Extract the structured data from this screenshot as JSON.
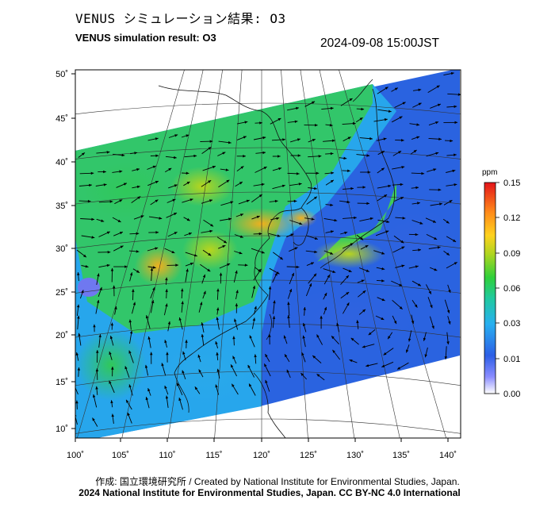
{
  "header": {
    "title_jp": "VENUS シミュレーション結果: O3",
    "title_en": "VENUS simulation result: O3",
    "timestamp": "2024-09-08 15:00JST"
  },
  "map": {
    "lon_labels": [
      "100˚",
      "105˚",
      "110˚",
      "115˚",
      "120˚",
      "125˚",
      "130˚",
      "135˚",
      "140˚"
    ],
    "lat_labels": [
      "50˚",
      "45˚",
      "40˚",
      "35˚",
      "30˚",
      "25˚",
      "20˚",
      "15˚",
      "10˚"
    ],
    "field": "O3 concentration with wind vectors"
  },
  "colorbar": {
    "unit": "ppm",
    "ticks": [
      "0.15",
      "0.12",
      "0.09",
      "0.06",
      "0.03",
      "0.01",
      "0.00"
    ],
    "colors": [
      "#ffffff",
      "#7f8cff",
      "#2d6fe8",
      "#28b6f0",
      "#22cf7a",
      "#4cd62c",
      "#c8d51e",
      "#ffb81c",
      "#ff6a1a",
      "#e31a1a"
    ]
  },
  "footer": {
    "credit_line1": "作成: 国立環境研究所 / Created by National Institute for Environmental Studies, Japan.",
    "credit_line2": "2024 National Institute for Environmental Studies, Japan. CC BY-NC 4.0 International"
  }
}
